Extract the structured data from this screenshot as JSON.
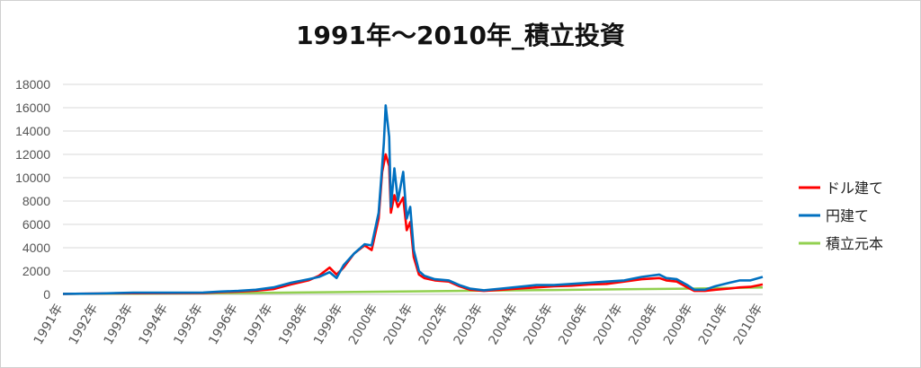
{
  "chart_data": {
    "type": "line",
    "title": "1991年～2010年_積立投資",
    "ylim": [
      0,
      18000
    ],
    "y_ticks": [
      "0",
      "2000",
      "4000",
      "6000",
      "8000",
      "10000",
      "12000",
      "14000",
      "16000",
      "18000"
    ],
    "x_ticks": [
      "1991年",
      "1992年",
      "1993年",
      "1994年",
      "1995年",
      "1996年",
      "1997年",
      "1998年",
      "1999年",
      "2000年",
      "2001年",
      "2002年",
      "2003年",
      "2004年",
      "2005年",
      "2006年",
      "2007年",
      "2008年",
      "2009年",
      "2010年",
      "2010年"
    ],
    "xlim": [
      1991.0,
      2010.95
    ],
    "grid": true,
    "legend_position": "right",
    "series": [
      {
        "name": "ドル建て",
        "color": "#ff0000",
        "x": [
          1991.0,
          1992.0,
          1993.0,
          1994.0,
          1995.0,
          1995.5,
          1996.0,
          1996.5,
          1997.0,
          1997.5,
          1998.0,
          1998.3,
          1998.6,
          1998.8,
          1999.0,
          1999.3,
          1999.6,
          1999.8,
          2000.0,
          2000.1,
          2000.2,
          2000.3,
          2000.35,
          2000.45,
          2000.55,
          2000.7,
          2000.8,
          2000.9,
          2001.0,
          2001.15,
          2001.3,
          2001.6,
          2002.0,
          2002.3,
          2002.6,
          2003.0,
          2003.5,
          2004.0,
          2004.5,
          2005.0,
          2005.5,
          2006.0,
          2006.5,
          2007.0,
          2007.5,
          2008.0,
          2008.2,
          2008.5,
          2008.8,
          2009.0,
          2009.3,
          2009.6,
          2010.0,
          2010.3,
          2010.6,
          2010.95
        ],
        "y": [
          50,
          80,
          100,
          110,
          120,
          200,
          250,
          320,
          450,
          850,
          1200,
          1600,
          2300,
          1700,
          2300,
          3500,
          4200,
          3800,
          6500,
          10500,
          12000,
          11000,
          7000,
          8500,
          7500,
          8300,
          5500,
          6200,
          3200,
          1700,
          1400,
          1200,
          1100,
          700,
          400,
          300,
          400,
          500,
          600,
          700,
          750,
          850,
          900,
          1100,
          1300,
          1400,
          1200,
          1100,
          600,
          300,
          300,
          400,
          500,
          600,
          650,
          850
        ]
      },
      {
        "name": "円建て",
        "color": "#0070c0",
        "x": [
          1991.0,
          1992.0,
          1993.0,
          1994.0,
          1995.0,
          1995.5,
          1996.0,
          1996.5,
          1997.0,
          1997.5,
          1998.0,
          1998.3,
          1998.6,
          1998.8,
          1999.0,
          1999.3,
          1999.6,
          1999.8,
          2000.0,
          2000.1,
          2000.15,
          2000.2,
          2000.3,
          2000.35,
          2000.45,
          2000.55,
          2000.7,
          2000.8,
          2000.9,
          2001.0,
          2001.15,
          2001.3,
          2001.6,
          2002.0,
          2002.3,
          2002.6,
          2003.0,
          2003.5,
          2004.0,
          2004.5,
          2005.0,
          2005.5,
          2006.0,
          2006.5,
          2007.0,
          2007.5,
          2008.0,
          2008.2,
          2008.5,
          2008.8,
          2009.0,
          2009.3,
          2009.6,
          2010.0,
          2010.3,
          2010.6,
          2010.95
        ],
        "y": [
          50,
          80,
          150,
          150,
          160,
          250,
          300,
          400,
          600,
          1000,
          1300,
          1500,
          1900,
          1400,
          2500,
          3500,
          4300,
          4200,
          7000,
          11000,
          13000,
          16200,
          13500,
          7500,
          10800,
          8000,
          10500,
          6500,
          7500,
          3800,
          2000,
          1600,
          1300,
          1200,
          800,
          500,
          350,
          500,
          650,
          800,
          800,
          900,
          1000,
          1100,
          1200,
          1500,
          1700,
          1400,
          1300,
          800,
          400,
          400,
          700,
          1000,
          1200,
          1200,
          1500
        ]
      },
      {
        "name": "積立元本",
        "color": "#92d050",
        "x": [
          1991.0,
          1993.0,
          1995.0,
          1997.0,
          1999.0,
          2001.0,
          2003.0,
          2005.0,
          2007.0,
          2009.0,
          2010.95
        ],
        "y": [
          50,
          60,
          100,
          150,
          200,
          260,
          320,
          380,
          440,
          500,
          600
        ]
      }
    ]
  }
}
